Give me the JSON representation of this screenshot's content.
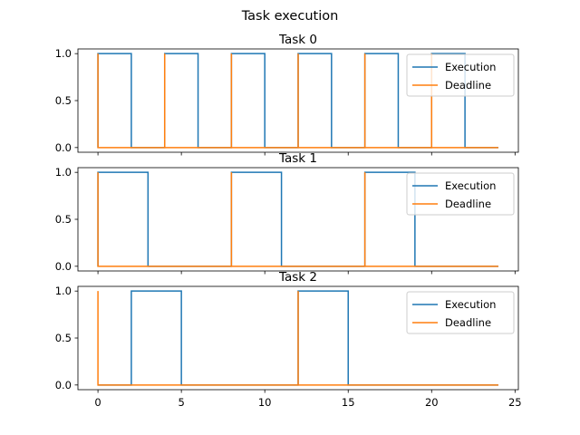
{
  "figure": {
    "suptitle": "Task execution"
  },
  "colors": {
    "execution": "#1f77b4",
    "deadline": "#ff7f0e",
    "axes": "#000000",
    "legend_border": "#cccccc"
  },
  "chart_data": [
    {
      "type": "line",
      "title": "Task 0",
      "xlim": [
        -1.2,
        25.2
      ],
      "ylim": [
        -0.05,
        1.05
      ],
      "xticks": [
        0,
        5,
        10,
        15,
        20,
        25
      ],
      "yticks": [
        0.0,
        0.5,
        1.0
      ],
      "ytick_labels": [
        "0.0",
        "0.5",
        "1.0"
      ],
      "show_xtick_labels": false,
      "legend": "upper right",
      "series": [
        {
          "name": "Execution",
          "x": [
            0,
            0,
            2,
            2,
            4,
            4,
            6,
            6,
            8,
            8,
            10,
            10,
            12,
            12,
            14,
            14,
            16,
            16,
            18,
            18,
            20,
            20,
            22,
            22,
            24
          ],
          "y": [
            0,
            1,
            1,
            0,
            0,
            1,
            1,
            0,
            0,
            1,
            1,
            0,
            0,
            1,
            1,
            0,
            0,
            1,
            1,
            0,
            0,
            1,
            1,
            0,
            0
          ]
        },
        {
          "name": "Deadline",
          "x": [
            0,
            0,
            0,
            4,
            4,
            4,
            8,
            8,
            8,
            12,
            12,
            12,
            16,
            16,
            16,
            20,
            20,
            20,
            24
          ],
          "y": [
            0,
            1,
            0,
            0,
            1,
            0,
            0,
            1,
            0,
            0,
            1,
            0,
            0,
            1,
            0,
            0,
            1,
            0,
            0
          ]
        }
      ]
    },
    {
      "type": "line",
      "title": "Task 1",
      "xlim": [
        -1.2,
        25.2
      ],
      "ylim": [
        -0.05,
        1.05
      ],
      "xticks": [
        0,
        5,
        10,
        15,
        20,
        25
      ],
      "yticks": [
        0.0,
        0.5,
        1.0
      ],
      "ytick_labels": [
        "0.0",
        "0.5",
        "1.0"
      ],
      "show_xtick_labels": false,
      "legend": "upper right",
      "series": [
        {
          "name": "Execution",
          "x": [
            0,
            0,
            3,
            3,
            8,
            8,
            11,
            11,
            16,
            16,
            19,
            19,
            24
          ],
          "y": [
            0,
            1,
            1,
            0,
            0,
            1,
            1,
            0,
            0,
            1,
            1,
            0,
            0
          ]
        },
        {
          "name": "Deadline",
          "x": [
            0,
            0,
            0,
            8,
            8,
            8,
            16,
            16,
            16,
            24
          ],
          "y": [
            0,
            1,
            0,
            0,
            1,
            0,
            0,
            1,
            0,
            0
          ]
        }
      ]
    },
    {
      "type": "line",
      "title": "Task 2",
      "xlim": [
        -1.2,
        25.2
      ],
      "ylim": [
        -0.05,
        1.05
      ],
      "xticks": [
        0,
        5,
        10,
        15,
        20,
        25
      ],
      "xtick_labels": [
        "0",
        "5",
        "10",
        "15",
        "20",
        "25"
      ],
      "yticks": [
        0.0,
        0.5,
        1.0
      ],
      "ytick_labels": [
        "0.0",
        "0.5",
        "1.0"
      ],
      "show_xtick_labels": true,
      "legend": "upper right",
      "series": [
        {
          "name": "Execution",
          "x": [
            0,
            2,
            2,
            5,
            5,
            12,
            12,
            15,
            15,
            24
          ],
          "y": [
            0,
            0,
            1,
            1,
            0,
            0,
            1,
            1,
            0,
            0
          ]
        },
        {
          "name": "Deadline",
          "x": [
            0,
            0,
            0,
            12,
            12,
            12,
            24
          ],
          "y": [
            0,
            1,
            0,
            0,
            1,
            0,
            0
          ]
        }
      ]
    }
  ]
}
